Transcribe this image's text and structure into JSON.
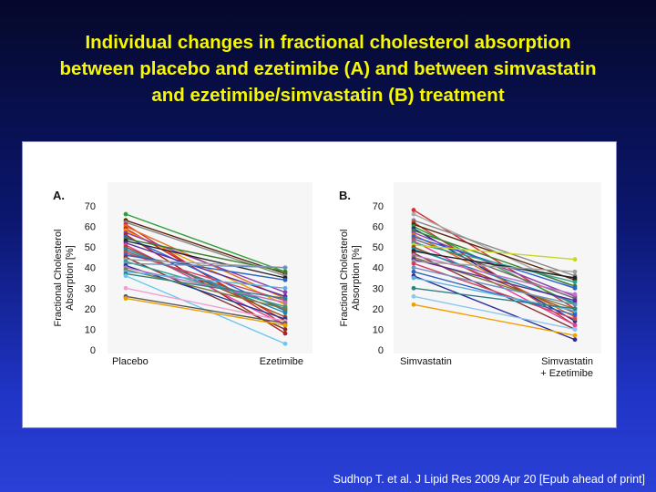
{
  "slide": {
    "title_lines": [
      "Individual changes in fractional cholesterol absorption",
      "between placebo and ezetimibe (A) and between simvastatin",
      "and ezetimibe/simvastatin (B) treatment"
    ],
    "citation": "Sudhop T. et al. J Lipid Res 2009 Apr 20 [Epub ahead of print]",
    "title_color": "#f7f700",
    "background_top": "#05082a",
    "background_bottom": "#2a40d6"
  },
  "chart_data": [
    {
      "type": "line",
      "panel_label": "A.",
      "ylabel_lines": [
        "Fractional Cholesterol",
        "Absorption [%]"
      ],
      "ylim": [
        0,
        70
      ],
      "yticks": [
        0,
        10,
        20,
        30,
        40,
        50,
        60,
        70
      ],
      "categories": [
        [
          "Placebo"
        ],
        [
          "Ezetimibe"
        ]
      ],
      "series": [
        {
          "values": [
            66,
            38
          ],
          "color": "#2e9e3a"
        },
        {
          "values": [
            63,
            37
          ],
          "color": "#5a2a10"
        },
        {
          "values": [
            62,
            36
          ],
          "color": "#888888"
        },
        {
          "values": [
            61,
            12
          ],
          "color": "#c83a3a"
        },
        {
          "values": [
            60,
            25
          ],
          "color": "#e07020"
        },
        {
          "values": [
            59,
            14
          ],
          "color": "#d61f1f"
        },
        {
          "values": [
            58,
            22
          ],
          "color": "#f0a000"
        },
        {
          "values": [
            57,
            28
          ],
          "color": "#8e3fb0"
        },
        {
          "values": [
            56,
            8
          ],
          "color": "#b02020"
        },
        {
          "values": [
            55,
            19
          ],
          "color": "#2a5fd6"
        },
        {
          "values": [
            54,
            38
          ],
          "color": "#3a7d2a"
        },
        {
          "values": [
            53,
            35
          ],
          "color": "#222222"
        },
        {
          "values": [
            52,
            26
          ],
          "color": "#5a2a9a"
        },
        {
          "values": [
            51,
            12
          ],
          "color": "#e0409a"
        },
        {
          "values": [
            50,
            16
          ],
          "color": "#a04a1a"
        },
        {
          "values": [
            49,
            18
          ],
          "color": "#1a8ab0"
        },
        {
          "values": [
            48,
            20
          ],
          "color": "#6a6a6a"
        },
        {
          "values": [
            47,
            24
          ],
          "color": "#d04060"
        },
        {
          "values": [
            46,
            34
          ],
          "color": "#3060c0"
        },
        {
          "values": [
            45,
            10
          ],
          "color": "#803030"
        },
        {
          "values": [
            44,
            40
          ],
          "color": "#a0a0a0"
        },
        {
          "values": [
            43,
            21
          ],
          "color": "#2ea08a"
        },
        {
          "values": [
            42,
            40
          ],
          "color": "#6e8fc0"
        },
        {
          "values": [
            41,
            15
          ],
          "color": "#1a3a9a"
        },
        {
          "values": [
            40,
            23
          ],
          "color": "#c070c0"
        },
        {
          "values": [
            39,
            20
          ],
          "color": "#7a7a3a"
        },
        {
          "values": [
            38,
            30
          ],
          "color": "#5bb0e0"
        },
        {
          "values": [
            37,
            25
          ],
          "color": "#2e7f80"
        },
        {
          "values": [
            36,
            3
          ],
          "color": "#6cc6ee"
        },
        {
          "values": [
            30,
            14
          ],
          "color": "#f0a0d0"
        },
        {
          "values": [
            26,
            13
          ],
          "color": "#5a5a5a"
        },
        {
          "values": [
            25,
            12
          ],
          "color": "#e8a000"
        }
      ]
    },
    {
      "type": "line",
      "panel_label": "B.",
      "ylabel_lines": [
        "Fractional Cholesterol",
        "Absorption [%]"
      ],
      "ylim": [
        0,
        70
      ],
      "yticks": [
        0,
        10,
        20,
        30,
        40,
        50,
        60,
        70
      ],
      "categories": [
        [
          "Simvastatin"
        ],
        [
          "Simvastatin",
          "+ Ezetimibe"
        ]
      ],
      "series": [
        {
          "values": [
            68,
            20
          ],
          "color": "#d63030"
        },
        {
          "values": [
            66,
            30
          ],
          "color": "#aaaaaa"
        },
        {
          "values": [
            63,
            36
          ],
          "color": "#888888"
        },
        {
          "values": [
            62,
            12
          ],
          "color": "#c83a3a"
        },
        {
          "values": [
            61,
            34
          ],
          "color": "#5a2a10"
        },
        {
          "values": [
            60,
            22
          ],
          "color": "#2e9e3a"
        },
        {
          "values": [
            59,
            14
          ],
          "color": "#1a2a8a"
        },
        {
          "values": [
            58,
            31
          ],
          "color": "#3a7d2a"
        },
        {
          "values": [
            57,
            26
          ],
          "color": "#8e3fb0"
        },
        {
          "values": [
            56,
            16
          ],
          "color": "#e07020"
        },
        {
          "values": [
            55,
            30
          ],
          "color": "#2a5fd6"
        },
        {
          "values": [
            54,
            25
          ],
          "color": "#6a6a6a"
        },
        {
          "values": [
            53,
            12
          ],
          "color": "#e0409a"
        },
        {
          "values": [
            52,
            33
          ],
          "color": "#2ea08a"
        },
        {
          "values": [
            51,
            44
          ],
          "color": "#c8d820"
        },
        {
          "values": [
            50,
            18
          ],
          "color": "#a04a1a"
        },
        {
          "values": [
            49,
            23
          ],
          "color": "#1a8ab0"
        },
        {
          "values": [
            48,
            35
          ],
          "color": "#222222"
        },
        {
          "values": [
            47,
            10
          ],
          "color": "#803030"
        },
        {
          "values": [
            46,
            27
          ],
          "color": "#c070c0"
        },
        {
          "values": [
            45,
            20
          ],
          "color": "#7a7a3a"
        },
        {
          "values": [
            44,
            24
          ],
          "color": "#5a2a9a"
        },
        {
          "values": [
            43,
            38
          ],
          "color": "#a0a0a0"
        },
        {
          "values": [
            42,
            15
          ],
          "color": "#d04060"
        },
        {
          "values": [
            40,
            22
          ],
          "color": "#6e8fc0"
        },
        {
          "values": [
            38,
            17
          ],
          "color": "#3060c0"
        },
        {
          "values": [
            36,
            5
          ],
          "color": "#2a2a9a"
        },
        {
          "values": [
            35,
            19
          ],
          "color": "#5bb0e0"
        },
        {
          "values": [
            30,
            20
          ],
          "color": "#2e7f80"
        },
        {
          "values": [
            26,
            10
          ],
          "color": "#8cc6ee"
        },
        {
          "values": [
            22,
            7
          ],
          "color": "#f0a000"
        }
      ]
    }
  ]
}
